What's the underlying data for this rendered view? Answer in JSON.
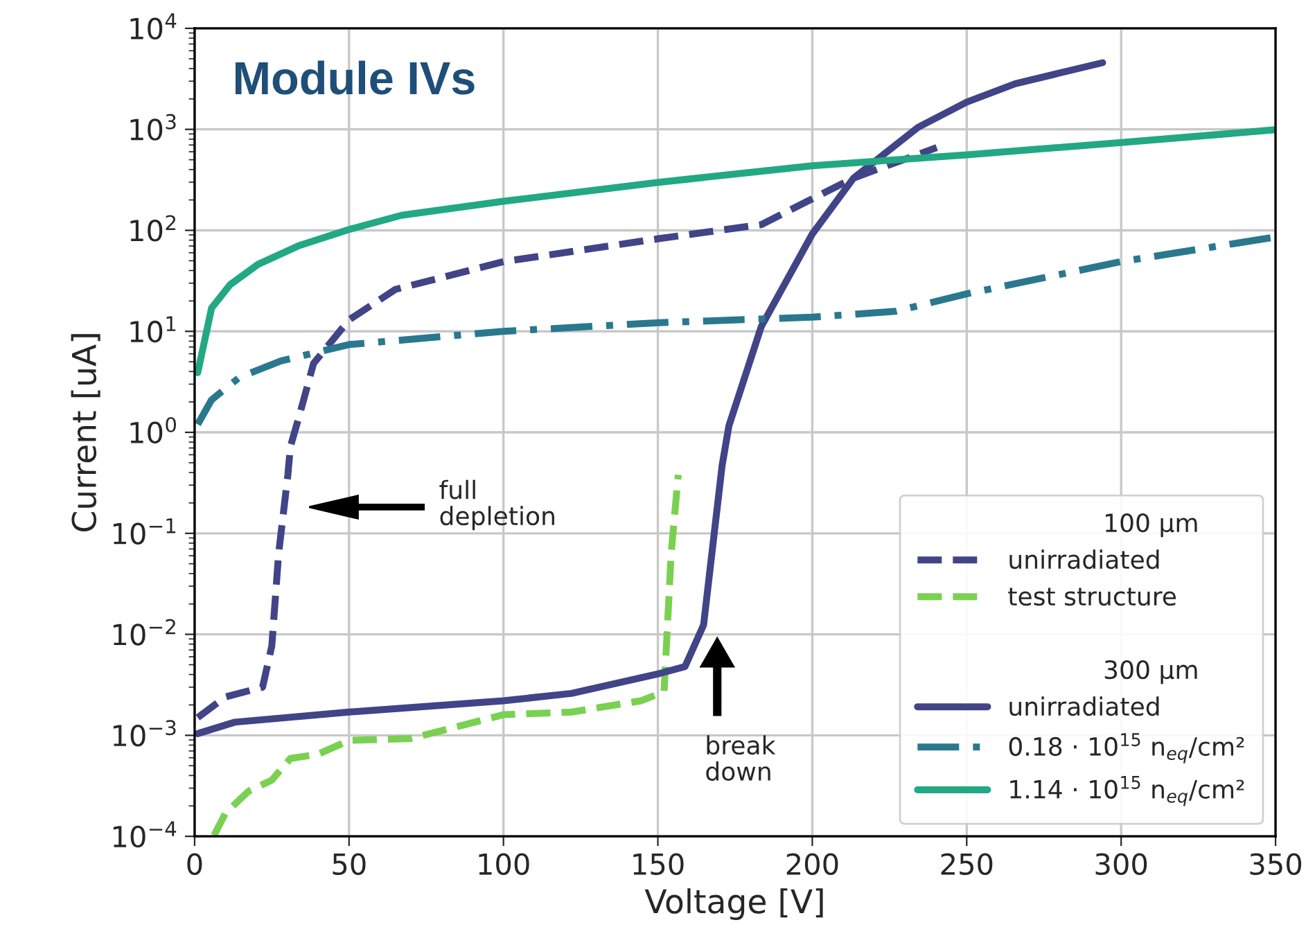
{
  "chart_data": {
    "type": "line",
    "title": "Module IVs",
    "xlabel": "Voltage [V]",
    "ylabel": "Current [uA]",
    "xlim": [
      0,
      350
    ],
    "xticks": [
      0,
      50,
      100,
      150,
      200,
      250,
      300,
      350
    ],
    "log": true,
    "ylim": [
      0.0001,
      10000
    ],
    "yticks": [
      {
        "value": 0.0001,
        "label": "10$^{−4}$"
      },
      {
        "value": 0.001,
        "label": "10$^{−3}$"
      },
      {
        "value": 0.01,
        "label": "10$^{−2}$"
      },
      {
        "value": 0.1,
        "label": "10$^{−1}$"
      },
      {
        "value": 1,
        "label": "10$^{0}$"
      },
      {
        "value": 10,
        "label": "10$^{1}$"
      },
      {
        "value": 100,
        "label": "10$^{2}$"
      },
      {
        "value": 1000,
        "label": "10$^{3}$"
      },
      {
        "value": 10000,
        "label": "10$^{4}$"
      }
    ],
    "grid": true,
    "legend": "bottom right",
    "marker": "none",
    "annotations": [
      "full\ndepletion",
      "break\ndown",
      "100 µm",
      "300 µm"
    ],
    "series": [
      {
        "name": "unirradiated",
        "color": "#414487",
        "line_style": "dashed",
        "x": [
          1,
          10,
          22,
          25,
          27.2,
          30.2,
          31,
          34,
          38.5,
          50,
          65,
          100,
          150.6,
          183.5,
          198.4,
          213.4,
          240.3
        ],
        "values": [
          0.0015,
          0.0024,
          0.003,
          0.0077,
          0.063,
          0.38,
          0.72,
          1.5,
          4.8,
          13,
          26,
          49,
          83,
          114,
          194,
          330,
          660
        ]
      },
      {
        "name": "test structure",
        "color": "#7ad151",
        "line_style": "dashed",
        "x": [
          6.3,
          10,
          17.5,
          25,
          31,
          40,
          50,
          70,
          100,
          122,
          144.6,
          152,
          154.3,
          156.6
        ],
        "values": [
          0.000102,
          0.00017,
          0.00028,
          0.00036,
          0.00059,
          0.00065,
          0.00089,
          0.00093,
          0.0016,
          0.0017,
          0.0022,
          0.0027,
          0.063,
          0.38
        ]
      },
      {
        "name": "unirradiated",
        "color": "#414487",
        "line_style": "solid",
        "x": [
          1,
          13,
          50,
          100,
          122,
          150.6,
          158.8,
          164.8,
          170.8,
          173,
          183.5,
          200,
          213.4,
          234.3,
          250,
          265.7,
          294
        ],
        "values": [
          0.00104,
          0.00135,
          0.0017,
          0.0022,
          0.0026,
          0.0041,
          0.0048,
          0.0124,
          0.47,
          1.16,
          11.2,
          92,
          330,
          1050,
          1860,
          2830,
          4570
        ]
      },
      {
        "name": "0.18 · 10$^{15}$ n$_{eq}$/cm²",
        "color": "#2a788e",
        "line_style": "dashdot",
        "x": [
          1,
          5.5,
          14.5,
          28,
          50,
          100,
          150.6,
          200,
          227,
          250,
          300,
          350
        ],
        "values": [
          1.2,
          2.1,
          3.5,
          5.1,
          7.4,
          10,
          12.2,
          13.8,
          15.8,
          23.5,
          49,
          86
        ]
      },
      {
        "name": "1.14 · 10$^{15}$ n$_{eq}$/cm²",
        "color": "#22a884",
        "line_style": "solid",
        "x": [
          1,
          5.5,
          11.5,
          20.5,
          34,
          50,
          67,
          100,
          150.6,
          200,
          250,
          300,
          350
        ],
        "values": [
          3.9,
          17,
          29,
          46,
          71,
          102,
          141,
          194,
          300,
          436,
          560,
          740,
          990
        ]
      }
    ]
  }
}
